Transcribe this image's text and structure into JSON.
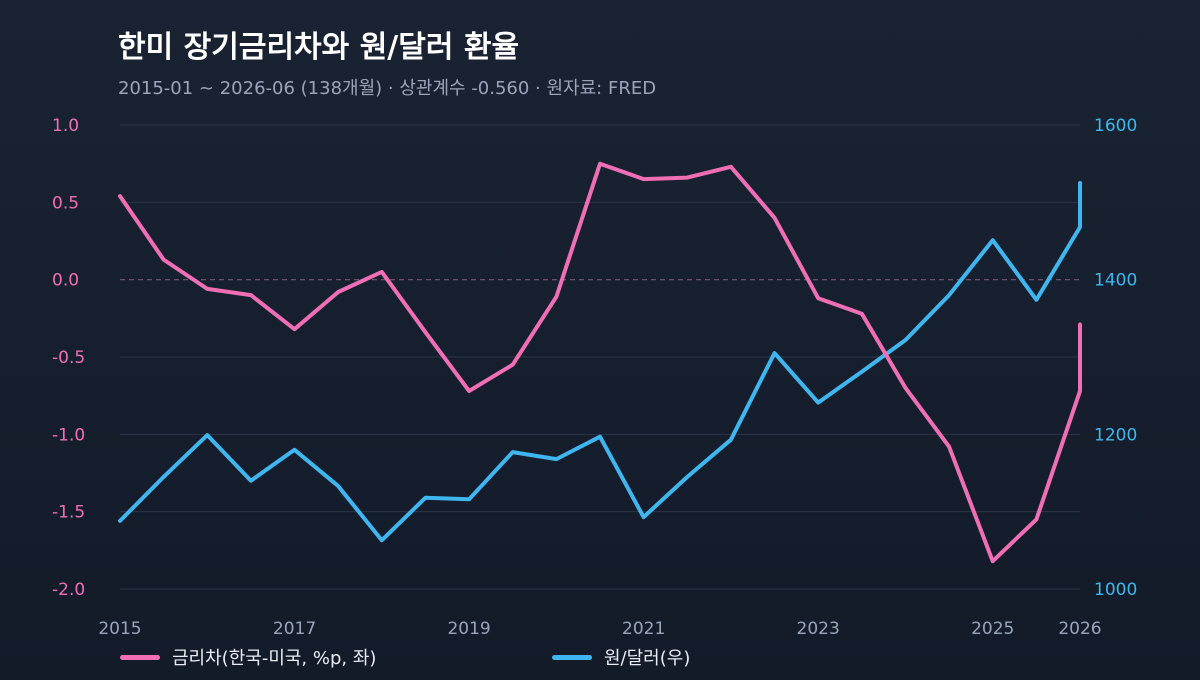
{
  "title": "한미 장기금리차와 원/달러 환율",
  "subtitle": "2015-01 ~ 2026-06 (138개월)  ·  상관계수 -0.560  ·  원자료: FRED",
  "colors": {
    "spread": "#f06fb4",
    "fx": "#3fb6ef",
    "left_axis_text": "#f06fb4",
    "right_axis_text": "#3fb6ef",
    "x_axis_text": "#9aa6b8",
    "grid": "#2a3445",
    "zero_line": "#7b5a74"
  },
  "chart_data": {
    "type": "line",
    "x_ticks": [
      "2015",
      "2017",
      "2019",
      "2021",
      "2023",
      "2025",
      "2026"
    ],
    "x_tick_years": [
      2015,
      2017,
      2019,
      2021,
      2023,
      2025,
      2026
    ],
    "xlim": [
      2015.0,
      2026.0
    ],
    "left_axis": {
      "ylim": [
        -2.0,
        1.0
      ],
      "ticks": [
        "1.0",
        "0.5",
        "0.0",
        "-0.5",
        "-1.0",
        "-1.5",
        "-2.0"
      ],
      "tick_values": [
        1.0,
        0.5,
        0.0,
        -0.5,
        -1.0,
        -1.5,
        -2.0
      ]
    },
    "right_axis": {
      "ylim": [
        1000,
        1600
      ],
      "ticks": [
        "1600",
        "1400",
        "1200",
        "1000"
      ],
      "tick_values": [
        1600,
        1400,
        1200,
        1000
      ]
    },
    "grid": true,
    "zero_line": true,
    "legend_position": "bottom",
    "series": [
      {
        "name": "금리차(한국-미국, %p, 좌)",
        "axis": "left",
        "x": [
          2015.0,
          2015.5,
          2016.0,
          2016.5,
          2017.0,
          2017.5,
          2018.0,
          2018.5,
          2019.0,
          2019.5,
          2020.0,
          2020.5,
          2021.0,
          2021.5,
          2022.0,
          2022.5,
          2023.0,
          2023.5,
          2024.0,
          2024.5,
          2025.0,
          2025.5,
          2026.0,
          2026.5
        ],
        "values": [
          0.54,
          0.13,
          -0.06,
          -0.1,
          -0.32,
          -0.08,
          0.05,
          -0.34,
          -0.72,
          -0.55,
          -0.11,
          0.75,
          0.65,
          0.66,
          0.73,
          0.4,
          -0.12,
          -0.22,
          -0.7,
          -1.08,
          -1.82,
          -1.55,
          -0.72,
          -0.29
        ]
      },
      {
        "name": "원/달러(우)",
        "axis": "right",
        "x": [
          2015.0,
          2015.5,
          2016.0,
          2016.5,
          2017.0,
          2017.5,
          2018.0,
          2018.5,
          2019.0,
          2019.5,
          2020.0,
          2020.5,
          2021.0,
          2021.5,
          2022.0,
          2022.5,
          2023.0,
          2023.5,
          2024.0,
          2024.5,
          2025.0,
          2025.5,
          2026.0,
          2026.5
        ],
        "values": [
          1088,
          1145,
          1199,
          1140,
          1180,
          1133,
          1063,
          1118,
          1116,
          1177,
          1168,
          1197,
          1093,
          1145,
          1193,
          1305,
          1241,
          1281,
          1322,
          1380,
          1451,
          1374,
          1468,
          1525
        ]
      }
    ]
  }
}
